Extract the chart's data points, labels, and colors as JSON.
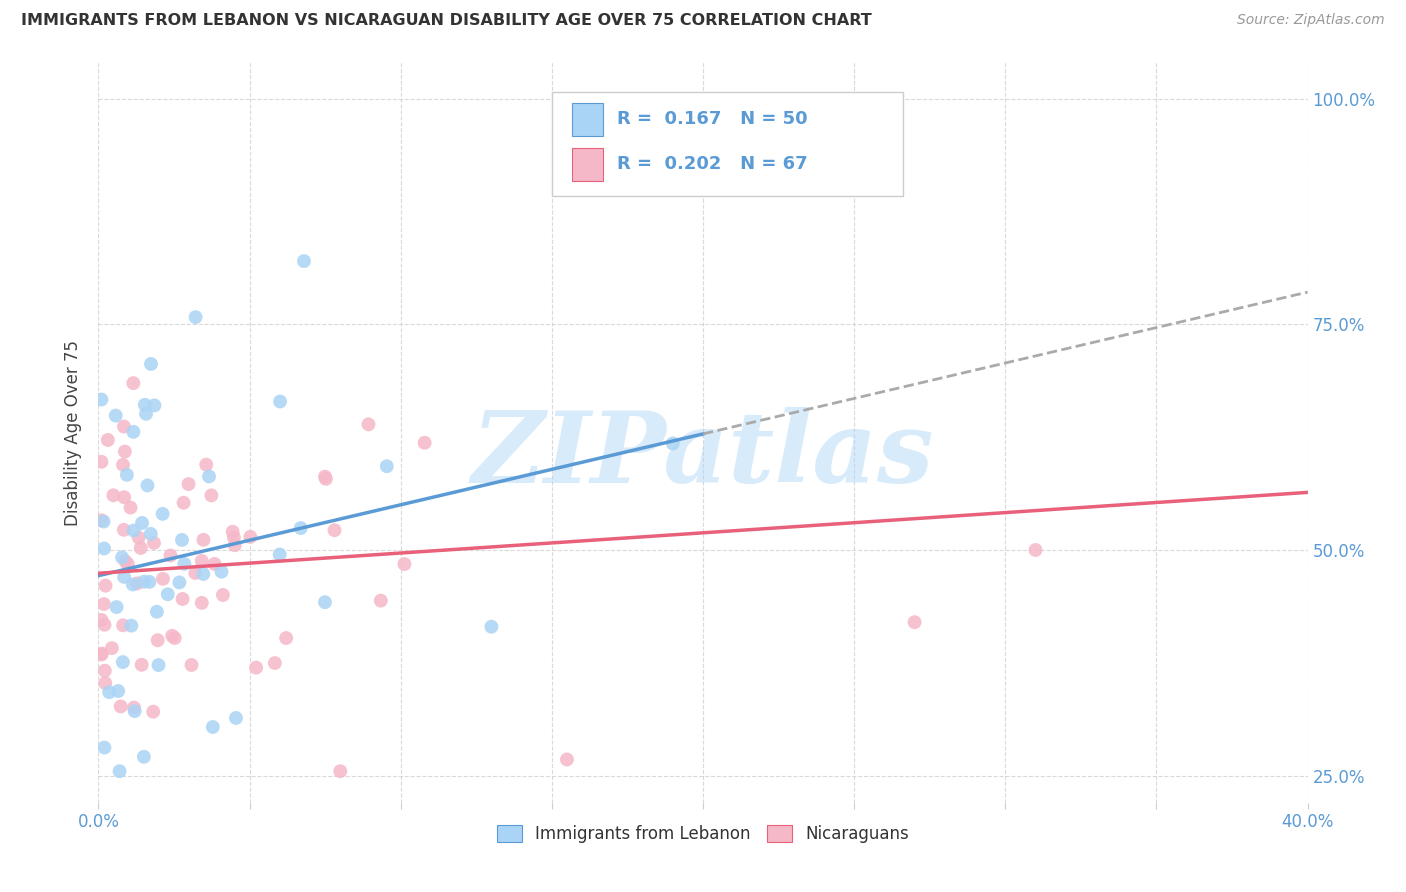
{
  "title": "IMMIGRANTS FROM LEBANON VS NICARAGUAN DISABILITY AGE OVER 75 CORRELATION CHART",
  "source": "Source: ZipAtlas.com",
  "ylabel": "Disability Age Over 75",
  "legend_label1": "Immigrants from Lebanon",
  "legend_label2": "Nicaraguans",
  "R1": 0.167,
  "N1": 50,
  "R2": 0.202,
  "N2": 67,
  "color1": "#aad4f5",
  "color2": "#f5b8c8",
  "line_color1": "#5b9bd5",
  "line_color2": "#e8607a",
  "xlim": [
    0.0,
    0.4
  ],
  "ylim": [
    0.22,
    1.04
  ],
  "xtick_vals": [
    0.0,
    0.05,
    0.1,
    0.15,
    0.2,
    0.25,
    0.3,
    0.35,
    0.4
  ],
  "ytick_vals": [
    0.25,
    0.5,
    0.75,
    1.0
  ],
  "background_color": "#FFFFFF",
  "watermark": "ZIPatlas",
  "grid_color": "#d0d0d0",
  "title_color": "#333333",
  "tick_color": "#5b9bd5",
  "source_color": "#999999"
}
